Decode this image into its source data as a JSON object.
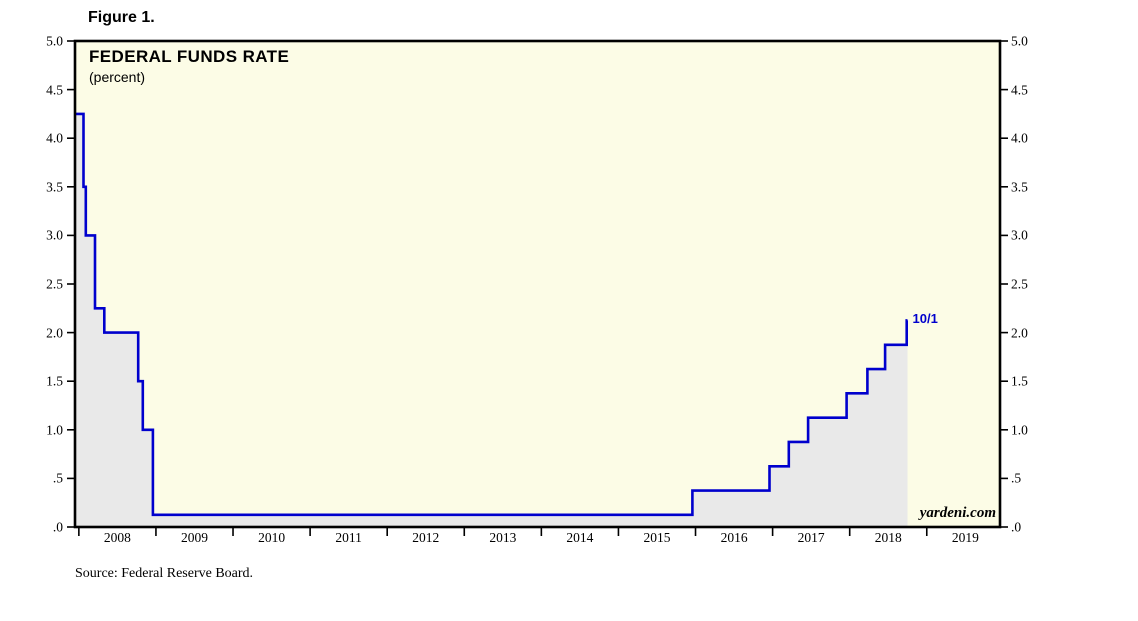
{
  "figure_label": "Figure 1.",
  "chart": {
    "title": "FEDERAL FUNDS RATE",
    "subtitle": "(percent)",
    "annotation": "10/1",
    "watermark": "yardeni.com",
    "source": "Source: Federal Reserve Board."
  },
  "chart_data": {
    "type": "line",
    "title": "FEDERAL FUNDS RATE",
    "ylabel": "percent",
    "xlim": [
      2007.95,
      2019.95
    ],
    "ylim": [
      0,
      5
    ],
    "grid": false,
    "legend": "none",
    "colors": {
      "line": "#0000CD",
      "area_fill": "#E9E9E9",
      "plot_background": "#FCFCE6",
      "axis": "#000000",
      "annotation": "#0000CD"
    },
    "ytick_labels": [
      "5.0",
      "4.5",
      "4.0",
      "3.5",
      "3.0",
      "2.5",
      "2.0",
      "1.5",
      "1.0",
      ".5",
      ".0"
    ],
    "ytick_values": [
      5,
      4.5,
      4,
      3.5,
      3,
      2.5,
      2,
      1.5,
      1,
      0.5,
      0
    ],
    "x_year_labels": [
      2008,
      2009,
      2010,
      2011,
      2012,
      2013,
      2014,
      2015,
      2016,
      2017,
      2018,
      2019
    ],
    "xtick_years": [
      2008,
      2009,
      2010,
      2011,
      2012,
      2013,
      2014,
      2015,
      2016,
      2017,
      2018,
      2019
    ],
    "annotation": {
      "label": "10/1",
      "x": 2018.75,
      "y": 2.125
    },
    "series": [
      {
        "name": "Federal Funds Rate",
        "color": "#0000CD",
        "points": [
          [
            2007.95,
            4.25
          ],
          [
            2008.06,
            4.25
          ],
          [
            2008.06,
            3.5
          ],
          [
            2008.09,
            3.5
          ],
          [
            2008.09,
            3.0
          ],
          [
            2008.21,
            3.0
          ],
          [
            2008.21,
            2.25
          ],
          [
            2008.33,
            2.25
          ],
          [
            2008.33,
            2.0
          ],
          [
            2008.77,
            2.0
          ],
          [
            2008.77,
            1.5
          ],
          [
            2008.83,
            1.5
          ],
          [
            2008.83,
            1.0
          ],
          [
            2008.96,
            1.0
          ],
          [
            2008.96,
            0.125
          ],
          [
            2015.96,
            0.125
          ],
          [
            2015.96,
            0.375
          ],
          [
            2016.96,
            0.375
          ],
          [
            2016.96,
            0.625
          ],
          [
            2017.21,
            0.625
          ],
          [
            2017.21,
            0.875
          ],
          [
            2017.46,
            0.875
          ],
          [
            2017.46,
            1.125
          ],
          [
            2017.96,
            1.125
          ],
          [
            2017.96,
            1.375
          ],
          [
            2018.23,
            1.375
          ],
          [
            2018.23,
            1.625
          ],
          [
            2018.46,
            1.625
          ],
          [
            2018.46,
            1.875
          ],
          [
            2018.74,
            1.875
          ],
          [
            2018.74,
            2.125
          ],
          [
            2018.75,
            2.125
          ]
        ]
      }
    ]
  }
}
